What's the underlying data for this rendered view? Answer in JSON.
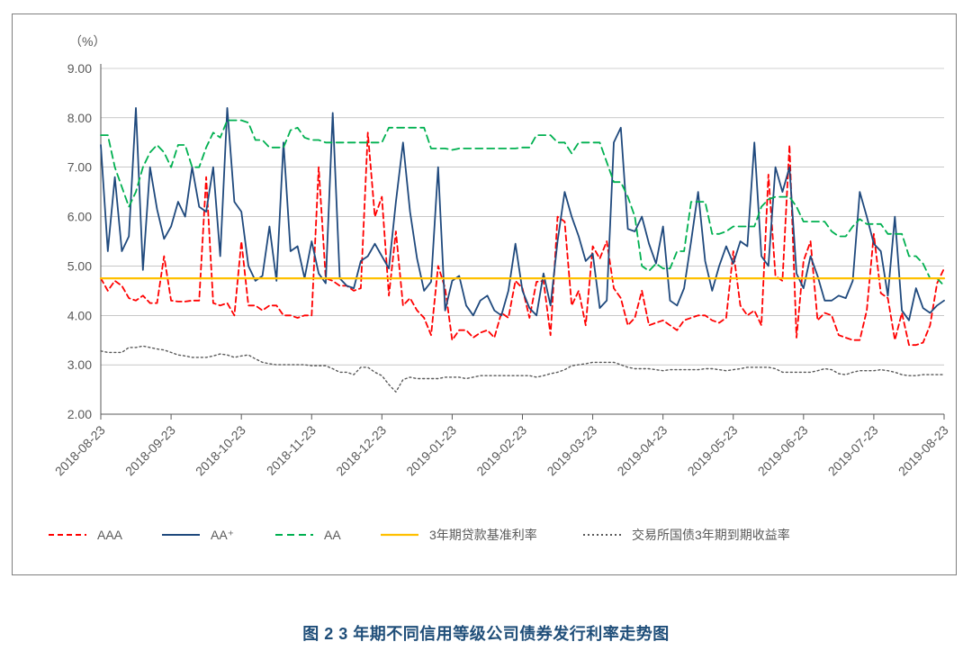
{
  "caption": "图 2  3 年期不同信用等级公司债券发行利率走势图",
  "chart": {
    "type": "line",
    "unit_label": "（%）",
    "background_color": "#ffffff",
    "plot_background_color": "#ffffff",
    "border_color": "#7f7f7f",
    "axis_color": "#595959",
    "grid_color": "#a6a6a6",
    "grid_width": 0.6,
    "axis_line_width": 1,
    "text_color": "#595959",
    "tick_fontsize": 14,
    "legend_fontsize": 14,
    "ylim": [
      2.0,
      9.0
    ],
    "ytick_step": 1.0,
    "yticks": [
      "2.00",
      "3.00",
      "4.00",
      "5.00",
      "6.00",
      "7.00",
      "8.00",
      "9.00"
    ],
    "x_labels": [
      "2018-08-23",
      "2018-09-23",
      "2018-10-23",
      "2018-11-23",
      "2018-12-23",
      "2019-01-23",
      "2019-02-23",
      "2019-03-23",
      "2019-04-23",
      "2019-05-23",
      "2019-06-23",
      "2019-07-23",
      "2019-08-23"
    ],
    "x_label_rotation": -45,
    "x_tick_interval": 10,
    "n_points": 121,
    "series": [
      {
        "name": "AAA",
        "legend_label": "AAA",
        "color": "#ff0000",
        "dash": "6,4",
        "width": 1.8,
        "values": [
          4.75,
          4.5,
          4.7,
          4.6,
          4.35,
          4.3,
          4.4,
          4.25,
          4.25,
          5.2,
          4.3,
          4.28,
          4.28,
          4.3,
          4.3,
          6.8,
          4.25,
          4.2,
          4.25,
          4.0,
          5.5,
          4.2,
          4.2,
          4.1,
          4.2,
          4.2,
          4.0,
          4.0,
          3.95,
          4.0,
          4.0,
          7.0,
          4.75,
          4.7,
          4.6,
          4.6,
          4.5,
          4.55,
          7.7,
          6.0,
          6.4,
          4.4,
          5.7,
          4.2,
          4.35,
          4.1,
          3.95,
          3.6,
          5.0,
          4.55,
          3.5,
          3.7,
          3.7,
          3.55,
          3.65,
          3.7,
          3.55,
          4.05,
          3.95,
          4.7,
          4.55,
          3.95,
          4.68,
          4.7,
          3.6,
          6.0,
          5.9,
          4.2,
          4.5,
          3.8,
          5.4,
          5.15,
          5.5,
          4.55,
          4.35,
          3.8,
          3.95,
          4.5,
          3.8,
          3.85,
          3.9,
          3.8,
          3.7,
          3.9,
          3.95,
          4.0,
          4.0,
          3.9,
          3.85,
          3.95,
          5.3,
          4.2,
          4.0,
          4.1,
          3.8,
          6.85,
          4.8,
          4.7,
          7.45,
          3.55,
          5.1,
          5.5,
          3.9,
          4.05,
          4.0,
          3.6,
          3.55,
          3.5,
          3.5,
          4.1,
          5.65,
          4.45,
          4.35,
          3.5,
          4.05,
          3.4,
          3.4,
          3.45,
          3.8,
          4.65,
          4.95
        ]
      },
      {
        "name": "AA_plus",
        "legend_label": "AA⁺",
        "color": "#1f497d",
        "dash": "none",
        "width": 1.8,
        "values": [
          7.45,
          5.3,
          6.8,
          5.3,
          5.6,
          8.2,
          4.92,
          7.0,
          6.15,
          5.55,
          5.8,
          6.3,
          6.0,
          7.0,
          6.2,
          6.1,
          7.0,
          5.2,
          8.2,
          6.3,
          6.1,
          5.0,
          4.7,
          4.8,
          5.8,
          4.7,
          7.5,
          5.3,
          5.4,
          4.75,
          5.5,
          4.85,
          4.65,
          8.1,
          4.75,
          4.6,
          4.55,
          5.1,
          5.2,
          5.45,
          5.2,
          4.95,
          6.3,
          7.5,
          6.1,
          5.15,
          4.5,
          4.68,
          7.0,
          4.1,
          4.7,
          4.8,
          4.2,
          4.0,
          4.3,
          4.4,
          4.1,
          4.0,
          4.5,
          5.45,
          4.5,
          4.15,
          4.0,
          4.85,
          4.2,
          5.5,
          6.5,
          6.0,
          5.6,
          5.1,
          5.25,
          4.15,
          4.3,
          7.5,
          7.8,
          5.75,
          5.7,
          6.0,
          5.45,
          5.05,
          5.8,
          4.3,
          4.2,
          4.55,
          5.5,
          6.5,
          5.1,
          4.5,
          5.0,
          5.4,
          5.05,
          5.5,
          5.4,
          7.5,
          5.2,
          5.0,
          7.0,
          6.5,
          7.0,
          4.85,
          4.55,
          5.2,
          4.8,
          4.3,
          4.3,
          4.4,
          4.35,
          4.7,
          6.5,
          6.0,
          5.45,
          5.3,
          4.4,
          6.0,
          4.1,
          3.9,
          4.55,
          4.15,
          4.05,
          4.2,
          4.3
        ]
      },
      {
        "name": "AA",
        "legend_label": "AA",
        "color": "#00b050",
        "dash": "8,5",
        "width": 1.8,
        "values": [
          7.65,
          7.65,
          7.0,
          6.6,
          6.2,
          6.5,
          7.0,
          7.3,
          7.45,
          7.3,
          7.0,
          7.45,
          7.45,
          7.0,
          7.0,
          7.4,
          7.7,
          7.6,
          7.95,
          7.95,
          7.95,
          7.9,
          7.55,
          7.55,
          7.4,
          7.4,
          7.4,
          7.75,
          7.8,
          7.6,
          7.55,
          7.55,
          7.5,
          7.5,
          7.5,
          7.5,
          7.5,
          7.5,
          7.5,
          7.5,
          7.5,
          7.8,
          7.8,
          7.8,
          7.8,
          7.8,
          7.8,
          7.38,
          7.38,
          7.38,
          7.35,
          7.38,
          7.38,
          7.38,
          7.38,
          7.38,
          7.38,
          7.38,
          7.38,
          7.38,
          7.4,
          7.4,
          7.65,
          7.65,
          7.65,
          7.5,
          7.5,
          7.28,
          7.5,
          7.5,
          7.5,
          7.5,
          7.1,
          6.7,
          6.7,
          6.4,
          6.0,
          5.0,
          4.9,
          5.05,
          4.95,
          4.95,
          5.3,
          5.3,
          6.3,
          6.3,
          6.3,
          5.65,
          5.65,
          5.7,
          5.8,
          5.8,
          5.8,
          5.8,
          6.2,
          6.35,
          6.4,
          6.4,
          6.4,
          6.2,
          5.9,
          5.9,
          5.9,
          5.9,
          5.7,
          5.6,
          5.6,
          5.8,
          5.95,
          5.85,
          5.85,
          5.85,
          5.65,
          5.65,
          5.65,
          5.2,
          5.2,
          5.05,
          4.75,
          4.75,
          4.6
        ]
      },
      {
        "name": "loan_3y",
        "legend_label": "3年期贷款基准利率",
        "color": "#ffc000",
        "dash": "none",
        "width": 2.2,
        "constant": 4.75
      },
      {
        "name": "gov_3y",
        "legend_label": "交易所国债3年期到期收益率",
        "color": "#595959",
        "dash": "2,3",
        "width": 1.4,
        "values": [
          3.28,
          3.25,
          3.25,
          3.25,
          3.35,
          3.35,
          3.38,
          3.35,
          3.32,
          3.3,
          3.25,
          3.2,
          3.18,
          3.15,
          3.15,
          3.15,
          3.18,
          3.22,
          3.2,
          3.15,
          3.18,
          3.2,
          3.12,
          3.05,
          3.02,
          3.0,
          3.0,
          3.0,
          3.0,
          3.0,
          2.98,
          2.98,
          2.98,
          2.92,
          2.85,
          2.85,
          2.8,
          2.95,
          2.95,
          2.85,
          2.78,
          2.6,
          2.45,
          2.7,
          2.75,
          2.72,
          2.72,
          2.72,
          2.72,
          2.75,
          2.75,
          2.75,
          2.72,
          2.75,
          2.78,
          2.78,
          2.78,
          2.78,
          2.78,
          2.78,
          2.78,
          2.78,
          2.75,
          2.78,
          2.82,
          2.85,
          2.9,
          2.98,
          3.0,
          3.02,
          3.05,
          3.05,
          3.05,
          3.05,
          3.0,
          2.95,
          2.92,
          2.92,
          2.92,
          2.9,
          2.88,
          2.9,
          2.9,
          2.9,
          2.9,
          2.9,
          2.92,
          2.92,
          2.9,
          2.88,
          2.9,
          2.92,
          2.95,
          2.95,
          2.95,
          2.95,
          2.92,
          2.85,
          2.85,
          2.85,
          2.85,
          2.85,
          2.88,
          2.92,
          2.9,
          2.82,
          2.8,
          2.85,
          2.88,
          2.88,
          2.88,
          2.9,
          2.88,
          2.85,
          2.8,
          2.78,
          2.78,
          2.8,
          2.8,
          2.8,
          2.8
        ]
      }
    ],
    "legend": {
      "position": "bottom",
      "items": [
        {
          "series": "AAA"
        },
        {
          "series": "AA_plus"
        },
        {
          "series": "AA"
        },
        {
          "series": "loan_3y"
        },
        {
          "series": "gov_3y"
        }
      ]
    }
  }
}
